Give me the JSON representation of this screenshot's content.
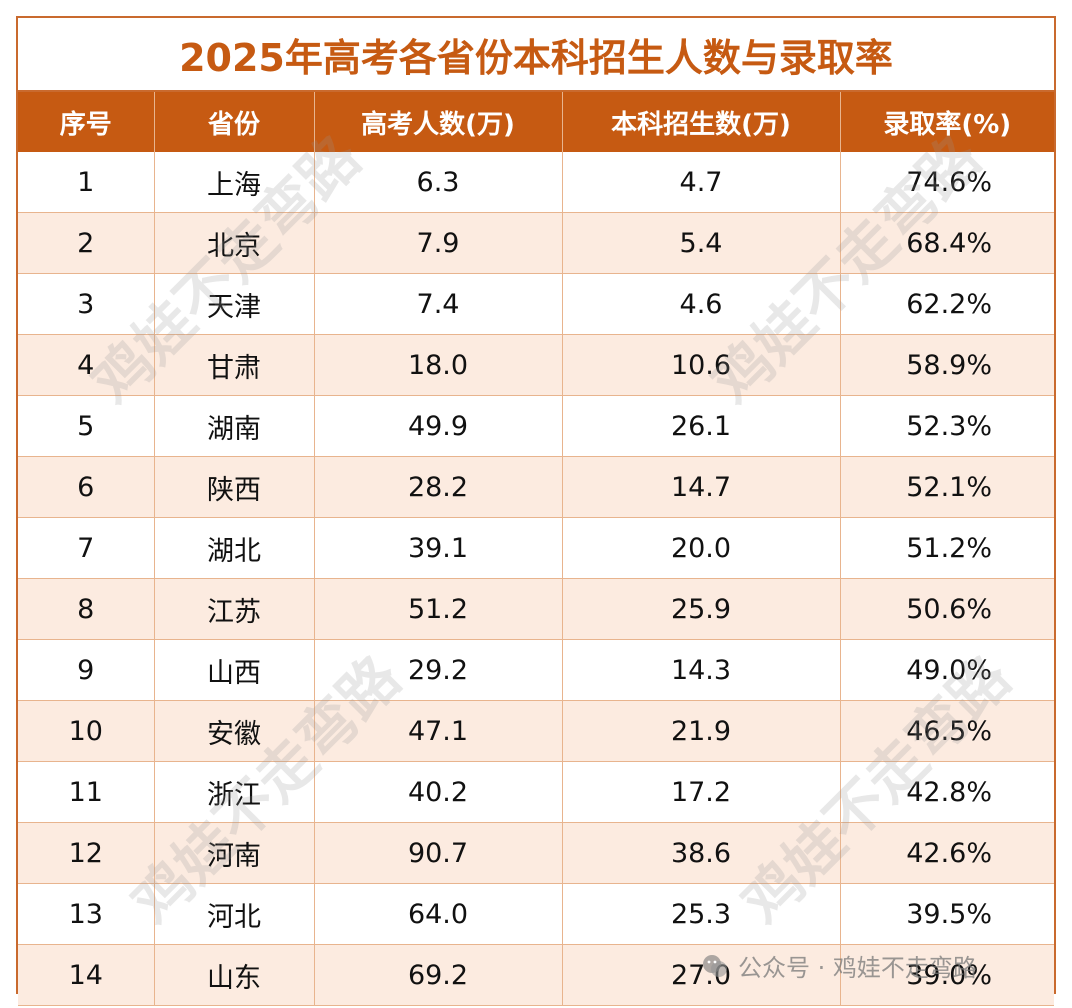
{
  "title": "2025年高考各省份本科招生人数与录取率",
  "headers": [
    "序号",
    "省份",
    "高考人数(万)",
    "本科招生数(万)",
    "录取率(%)"
  ],
  "rows": [
    {
      "no": "1",
      "province": "上海",
      "examinees": "6.3",
      "admitted": "4.7",
      "rate": "74.6%"
    },
    {
      "no": "2",
      "province": "北京",
      "examinees": "7.9",
      "admitted": "5.4",
      "rate": "68.4%"
    },
    {
      "no": "3",
      "province": "天津",
      "examinees": "7.4",
      "admitted": "4.6",
      "rate": "62.2%"
    },
    {
      "no": "4",
      "province": "甘肃",
      "examinees": "18.0",
      "admitted": "10.6",
      "rate": "58.9%"
    },
    {
      "no": "5",
      "province": "湖南",
      "examinees": "49.9",
      "admitted": "26.1",
      "rate": "52.3%"
    },
    {
      "no": "6",
      "province": "陕西",
      "examinees": "28.2",
      "admitted": "14.7",
      "rate": "52.1%"
    },
    {
      "no": "7",
      "province": "湖北",
      "examinees": "39.1",
      "admitted": "20.0",
      "rate": "51.2%"
    },
    {
      "no": "8",
      "province": "江苏",
      "examinees": "51.2",
      "admitted": "25.9",
      "rate": "50.6%"
    },
    {
      "no": "9",
      "province": "山西",
      "examinees": "29.2",
      "admitted": "14.3",
      "rate": "49.0%"
    },
    {
      "no": "10",
      "province": "安徽",
      "examinees": "47.1",
      "admitted": "21.9",
      "rate": "46.5%"
    },
    {
      "no": "11",
      "province": "浙江",
      "examinees": "40.2",
      "admitted": "17.2",
      "rate": "42.8%"
    },
    {
      "no": "12",
      "province": "河南",
      "examinees": "90.7",
      "admitted": "38.6",
      "rate": "42.6%"
    },
    {
      "no": "13",
      "province": "河北",
      "examinees": "64.0",
      "admitted": "25.3",
      "rate": "39.5%"
    },
    {
      "no": "14",
      "province": "山东",
      "examinees": "69.2",
      "admitted": "27.0",
      "rate": "39.0%"
    }
  ],
  "watermark_text": "鸡娃不走弯路",
  "footer": {
    "label": "公众号 · 鸡娃不走弯路",
    "icon": "wechat-icon"
  },
  "colors": {
    "header_bg": "#c65a12",
    "title_text": "#c65a12",
    "stripe_bg": "#fcebe0",
    "border": "#e8b48e"
  }
}
